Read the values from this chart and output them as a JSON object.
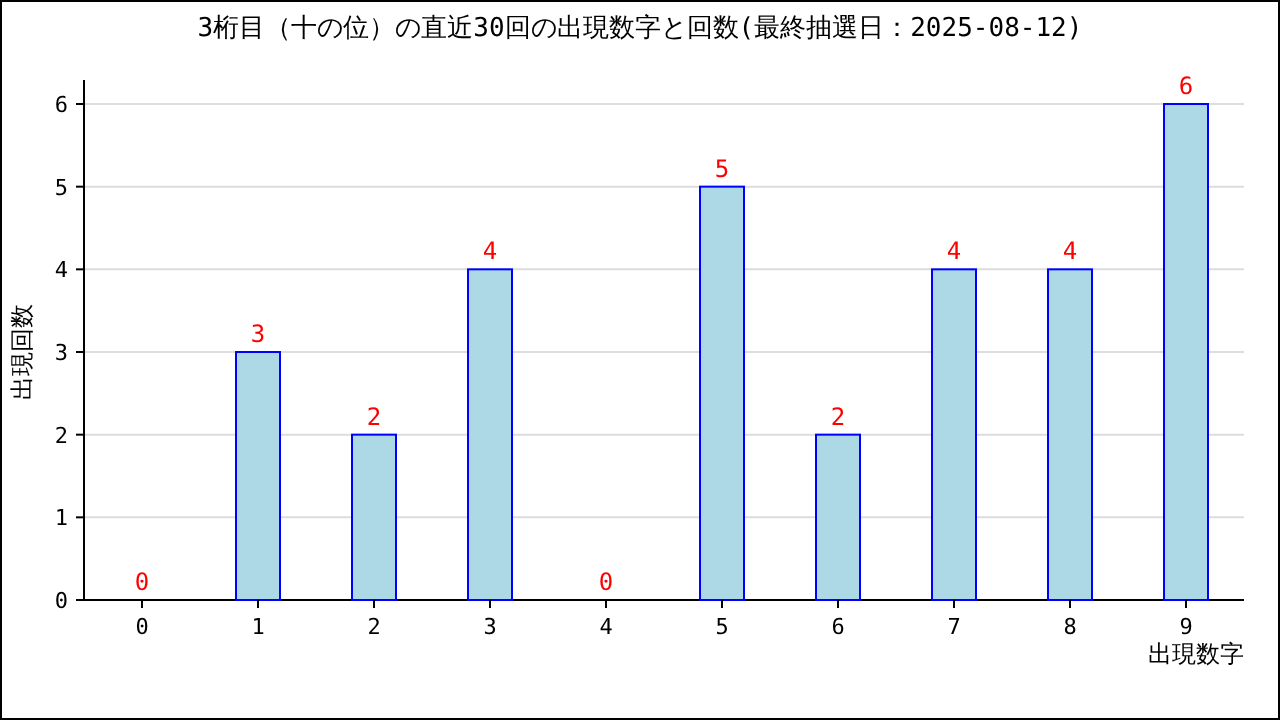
{
  "chart_data": {
    "type": "bar",
    "title": "3桁目（十の位）の直近30回の出現数字と回数(最終抽選日：2025-08-12)",
    "xlabel": "出現数字",
    "ylabel": "出現回数",
    "categories": [
      "0",
      "1",
      "2",
      "3",
      "4",
      "5",
      "6",
      "7",
      "8",
      "9"
    ],
    "values": [
      0,
      3,
      2,
      4,
      0,
      5,
      2,
      4,
      4,
      6
    ],
    "color": "#add8e6",
    "ylim": [
      0,
      6
    ],
    "yticks": [
      0,
      1,
      2,
      3,
      4,
      5,
      6
    ],
    "grid": "y",
    "data_labels": true
  }
}
